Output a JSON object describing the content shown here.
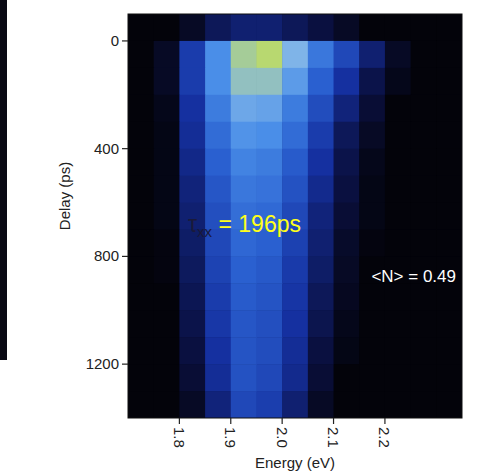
{
  "chart_data": {
    "type": "heatmap",
    "x_label": "Energy (eV)",
    "y_label": "Delay (ps)",
    "xlim": [
      1.7,
      2.35
    ],
    "ylim": [
      1400,
      -100
    ],
    "xticks": [
      1.8,
      1.9,
      {
        "value": 2,
        "label": "2.0"
      },
      2.1,
      2.2
    ],
    "yticks": [
      0,
      400,
      800,
      1200
    ],
    "x_edges": [
      1.7,
      1.75,
      1.8,
      1.85,
      1.9,
      1.95,
      2.0,
      2.05,
      2.1,
      2.15,
      2.2,
      2.25,
      2.3,
      2.35
    ],
    "y_edges": [
      -100,
      0,
      100,
      200,
      300,
      400,
      500,
      600,
      700,
      800,
      900,
      1000,
      1100,
      1200,
      1300,
      1400
    ],
    "cells": [
      [
        0,
        0,
        0.05,
        0.15,
        0.2,
        0.2,
        0.15,
        0.1,
        0.05,
        0,
        0,
        0,
        0
      ],
      [
        0,
        0.05,
        0.35,
        0.7,
        0.95,
        1.0,
        0.85,
        0.6,
        0.4,
        0.2,
        0.05,
        0,
        0
      ],
      [
        0,
        0.05,
        0.35,
        0.7,
        0.9,
        0.9,
        0.75,
        0.5,
        0.3,
        0.12,
        0.03,
        0,
        0
      ],
      [
        0,
        0.03,
        0.3,
        0.62,
        0.8,
        0.78,
        0.62,
        0.42,
        0.22,
        0.08,
        0,
        0,
        0
      ],
      [
        0,
        0.02,
        0.28,
        0.55,
        0.72,
        0.7,
        0.55,
        0.35,
        0.15,
        0.05,
        0,
        0,
        0
      ],
      [
        0,
        0.02,
        0.25,
        0.5,
        0.65,
        0.62,
        0.48,
        0.3,
        0.12,
        0.03,
        0,
        0,
        0
      ],
      [
        0,
        0.02,
        0.22,
        0.46,
        0.6,
        0.58,
        0.44,
        0.26,
        0.1,
        0.02,
        0,
        0,
        0
      ],
      [
        0,
        0.02,
        0.2,
        0.43,
        0.56,
        0.54,
        0.4,
        0.22,
        0.08,
        0.02,
        0,
        0,
        0
      ],
      [
        0,
        0.01,
        0.18,
        0.4,
        0.53,
        0.5,
        0.37,
        0.2,
        0.06,
        0.01,
        0,
        0,
        0
      ],
      [
        0,
        0.01,
        0.16,
        0.38,
        0.5,
        0.47,
        0.34,
        0.18,
        0.05,
        0,
        0,
        0,
        0
      ],
      [
        0,
        0,
        0.14,
        0.35,
        0.48,
        0.45,
        0.32,
        0.15,
        0.04,
        0,
        0,
        0,
        0
      ],
      [
        0,
        0,
        0.12,
        0.33,
        0.46,
        0.43,
        0.3,
        0.13,
        0.03,
        0,
        0,
        0,
        0
      ],
      [
        0,
        0,
        0.1,
        0.3,
        0.45,
        0.42,
        0.28,
        0.1,
        0.02,
        0,
        0,
        0,
        0
      ],
      [
        0,
        0,
        0.08,
        0.28,
        0.44,
        0.4,
        0.26,
        0.08,
        0,
        0,
        0,
        0,
        0
      ],
      [
        0,
        0,
        0.05,
        0.22,
        0.4,
        0.36,
        0.2,
        0.05,
        0,
        0,
        0,
        0,
        0
      ]
    ],
    "annotations": [
      {
        "symbol": "τ",
        "subscript": "xx",
        "text": " = 196ps"
      },
      {
        "text": "<N> = 0.49"
      }
    ]
  }
}
